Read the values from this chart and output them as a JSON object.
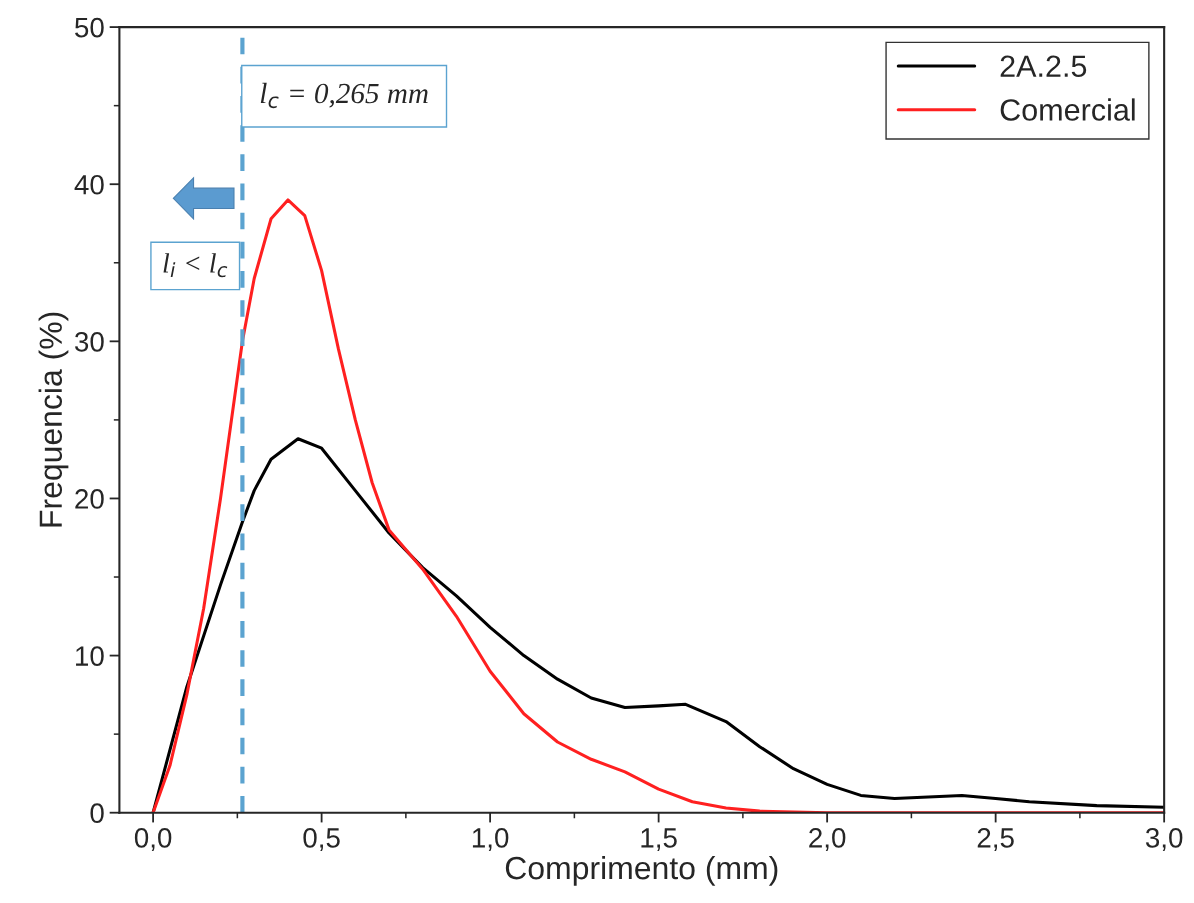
{
  "chart_data": {
    "type": "line",
    "xlabel": "Comprimento (mm)",
    "ylabel": "Frequencia (%)",
    "xlim": [
      -0.1,
      3.0
    ],
    "xticks": [
      {
        "value": 0,
        "label": "0,0"
      },
      {
        "value": 0.5,
        "label": "0,5"
      },
      {
        "value": 1.0,
        "label": "1,0"
      },
      {
        "value": 1.5,
        "label": "1,5"
      },
      {
        "value": 2.0,
        "label": "2,0"
      },
      {
        "value": 2.5,
        "label": "2,5"
      },
      {
        "value": 3.0,
        "label": "3,0"
      }
    ],
    "ylim": [
      0,
      50
    ],
    "yticks": [
      0,
      10,
      20,
      30,
      40,
      50
    ],
    "series": [
      {
        "name": "2A.2.5",
        "color": "#000000",
        "x": [
          0,
          0.1,
          0.2,
          0.265,
          0.3,
          0.35,
          0.43,
          0.5,
          0.6,
          0.7,
          0.8,
          0.9,
          1.0,
          1.1,
          1.2,
          1.3,
          1.4,
          1.5,
          1.58,
          1.7,
          1.8,
          1.9,
          2.0,
          2.1,
          2.2,
          2.3,
          2.4,
          2.5,
          2.6,
          2.8,
          3.0
        ],
        "values": [
          0,
          8,
          14.5,
          18.5,
          20.5,
          22.5,
          23.8,
          23.2,
          20.5,
          17.8,
          15.6,
          13.8,
          11.8,
          10,
          8.5,
          7.3,
          6.7,
          6.8,
          6.9,
          5.8,
          4.2,
          2.8,
          1.8,
          1.1,
          0.9,
          1.0,
          1.1,
          0.9,
          0.7,
          0.45,
          0.35
        ]
      },
      {
        "name": "Comercial",
        "color": "#ff2020",
        "x": [
          0,
          0.05,
          0.1,
          0.15,
          0.2,
          0.265,
          0.3,
          0.35,
          0.4,
          0.45,
          0.5,
          0.55,
          0.6,
          0.65,
          0.7,
          0.8,
          0.9,
          1.0,
          1.1,
          1.2,
          1.3,
          1.4,
          1.5,
          1.6,
          1.7,
          1.8,
          2.0,
          3.0
        ],
        "values": [
          0,
          3,
          7.5,
          13,
          20,
          30,
          34,
          37.8,
          39,
          38,
          34.5,
          29.5,
          25,
          21,
          18,
          15.5,
          12.5,
          9,
          6.3,
          4.5,
          3.4,
          2.6,
          1.5,
          0.7,
          0.3,
          0.1,
          0,
          0
        ]
      }
    ],
    "ref_lines": [
      {
        "axis": "x",
        "value": 0.265,
        "label": "l$_{c}$ = 0,265 mm",
        "color": "#5ba3d0",
        "line_style": "dashed"
      }
    ],
    "annotations": [
      "l$_{i}$ < l$_{c}$"
    ],
    "legend": "top right",
    "marker": "none",
    "line_style": "solid",
    "grid": false
  }
}
